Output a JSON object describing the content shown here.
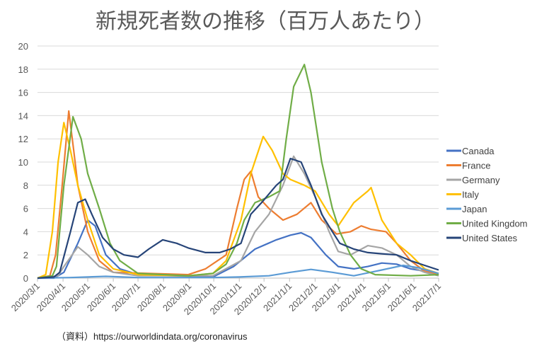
{
  "chart_data": {
    "type": "line",
    "title": "新規死者数の推移（百万人あたり）",
    "xlabel": "",
    "ylabel": "",
    "x_unit": "days since 2020/3/1",
    "xlim": [
      0,
      487
    ],
    "ylim": [
      0,
      20
    ],
    "yticks": [
      "0",
      "2",
      "4",
      "6",
      "8",
      "10",
      "12",
      "14",
      "16",
      "18",
      "20"
    ],
    "xtick_labels": [
      "2020/3/1",
      "2020/4/1",
      "2020/5/1",
      "2020/6/1",
      "2020/7/1",
      "2020/8/1",
      "2020/9/1",
      "2020/10/1",
      "2020/11/1",
      "2020/12/1",
      "2021/1/1",
      "2021/2/1",
      "2021/3/1",
      "2021/4/1",
      "2021/5/1",
      "2021/6/1",
      "2021/7/1"
    ],
    "xtick_days": [
      0,
      31,
      61,
      92,
      122,
      153,
      184,
      214,
      245,
      275,
      306,
      337,
      365,
      396,
      426,
      457,
      487
    ],
    "grid": true,
    "legend_position": "right",
    "source": "（資料）https://ourworldindata.org/coronavirus",
    "series": [
      {
        "name": "Canada",
        "color": "#4472C4",
        "points": [
          [
            0,
            0
          ],
          [
            20,
            0
          ],
          [
            32,
            0.5
          ],
          [
            49,
            3
          ],
          [
            61,
            5
          ],
          [
            70,
            4.5
          ],
          [
            83,
            2
          ],
          [
            100,
            0.8
          ],
          [
            122,
            0.3
          ],
          [
            213,
            0.1
          ],
          [
            238,
            1
          ],
          [
            264,
            2.5
          ],
          [
            290,
            3.3
          ],
          [
            307,
            3.7
          ],
          [
            320,
            3.9
          ],
          [
            332,
            3.5
          ],
          [
            350,
            2
          ],
          [
            365,
            1
          ],
          [
            384,
            0.8
          ],
          [
            401,
            1
          ],
          [
            418,
            1.3
          ],
          [
            436,
            1.2
          ],
          [
            453,
            0.8
          ],
          [
            470,
            0.6
          ],
          [
            487,
            0.3
          ]
        ]
      },
      {
        "name": "France",
        "color": "#ED7D31",
        "points": [
          [
            0,
            0
          ],
          [
            15,
            0.2
          ],
          [
            22,
            2
          ],
          [
            30,
            8
          ],
          [
            38,
            14.4
          ],
          [
            44,
            11
          ],
          [
            49,
            8
          ],
          [
            61,
            4
          ],
          [
            75,
            1.5
          ],
          [
            92,
            0.5
          ],
          [
            183,
            0.3
          ],
          [
            204,
            0.8
          ],
          [
            229,
            2
          ],
          [
            242,
            6
          ],
          [
            251,
            8.5
          ],
          [
            259,
            9.2
          ],
          [
            268,
            7
          ],
          [
            281,
            6
          ],
          [
            298,
            5
          ],
          [
            315,
            5.5
          ],
          [
            332,
            6.5
          ],
          [
            345,
            5
          ],
          [
            363,
            3.8
          ],
          [
            380,
            4
          ],
          [
            393,
            4.5
          ],
          [
            405,
            4.2
          ],
          [
            423,
            4
          ],
          [
            436,
            3
          ],
          [
            453,
            1.5
          ],
          [
            470,
            0.6
          ],
          [
            487,
            0.3
          ]
        ]
      },
      {
        "name": "Germany",
        "color": "#A5A5A5",
        "points": [
          [
            0,
            0
          ],
          [
            25,
            0.2
          ],
          [
            32,
            1
          ],
          [
            49,
            2.7
          ],
          [
            61,
            2
          ],
          [
            75,
            1
          ],
          [
            92,
            0.5
          ],
          [
            122,
            0.2
          ],
          [
            213,
            0.2
          ],
          [
            247,
            1.5
          ],
          [
            264,
            4
          ],
          [
            281,
            5.5
          ],
          [
            298,
            8
          ],
          [
            311,
            10.5
          ],
          [
            324,
            9
          ],
          [
            337,
            7
          ],
          [
            354,
            4
          ],
          [
            365,
            2.3
          ],
          [
            380,
            2
          ],
          [
            401,
            2.8
          ],
          [
            418,
            2.6
          ],
          [
            436,
            2
          ],
          [
            453,
            1
          ],
          [
            470,
            0.5
          ],
          [
            487,
            0.2
          ]
        ]
      },
      {
        "name": "Italy",
        "color": "#FFC000",
        "points": [
          [
            0,
            0
          ],
          [
            10,
            0.3
          ],
          [
            18,
            4
          ],
          [
            25,
            10
          ],
          [
            32,
            13.4
          ],
          [
            40,
            11
          ],
          [
            49,
            8
          ],
          [
            61,
            5
          ],
          [
            75,
            2
          ],
          [
            92,
            0.8
          ],
          [
            122,
            0.3
          ],
          [
            183,
            0.2
          ],
          [
            213,
            0.4
          ],
          [
            229,
            1.5
          ],
          [
            247,
            5
          ],
          [
            259,
            9
          ],
          [
            274,
            12.2
          ],
          [
            285,
            11
          ],
          [
            298,
            9
          ],
          [
            307,
            8.5
          ],
          [
            324,
            8
          ],
          [
            337,
            7.5
          ],
          [
            354,
            5.5
          ],
          [
            365,
            4.5
          ],
          [
            384,
            6.5
          ],
          [
            401,
            7.5
          ],
          [
            405,
            7.8
          ],
          [
            418,
            5
          ],
          [
            436,
            3
          ],
          [
            453,
            2
          ],
          [
            470,
            0.8
          ],
          [
            487,
            0.4
          ]
        ]
      },
      {
        "name": "Japan",
        "color": "#5B9BD5",
        "points": [
          [
            0,
            0
          ],
          [
            40,
            0.05
          ],
          [
            83,
            0.15
          ],
          [
            122,
            0.05
          ],
          [
            213,
            0.05
          ],
          [
            245,
            0.1
          ],
          [
            281,
            0.2
          ],
          [
            307,
            0.5
          ],
          [
            332,
            0.75
          ],
          [
            358,
            0.5
          ],
          [
            384,
            0.2
          ],
          [
            418,
            0.7
          ],
          [
            444,
            1.1
          ],
          [
            462,
            0.9
          ],
          [
            487,
            0.4
          ]
        ]
      },
      {
        "name": "United Kingdom",
        "color": "#70AD47",
        "points": [
          [
            0,
            0
          ],
          [
            18,
            0.2
          ],
          [
            23,
            1
          ],
          [
            32,
            8
          ],
          [
            43,
            13.9
          ],
          [
            53,
            12
          ],
          [
            61,
            9
          ],
          [
            75,
            6
          ],
          [
            88,
            3
          ],
          [
            100,
            1.5
          ],
          [
            122,
            0.4
          ],
          [
            183,
            0.2
          ],
          [
            213,
            0.4
          ],
          [
            229,
            1.2
          ],
          [
            242,
            3
          ],
          [
            251,
            5
          ],
          [
            264,
            6.5
          ],
          [
            281,
            7
          ],
          [
            294,
            7.5
          ],
          [
            302,
            12
          ],
          [
            311,
            16.5
          ],
          [
            324,
            18.4
          ],
          [
            332,
            16
          ],
          [
            345,
            10
          ],
          [
            358,
            6
          ],
          [
            367,
            4
          ],
          [
            380,
            2
          ],
          [
            393,
            0.8
          ],
          [
            410,
            0.3
          ],
          [
            453,
            0.2
          ],
          [
            487,
            0.3
          ]
        ]
      },
      {
        "name": "United States",
        "color": "#264478",
        "points": [
          [
            0,
            0
          ],
          [
            20,
            0.1
          ],
          [
            27,
            0.5
          ],
          [
            40,
            4
          ],
          [
            49,
            6.5
          ],
          [
            58,
            6.8
          ],
          [
            66,
            5.5
          ],
          [
            79,
            3.5
          ],
          [
            92,
            2.5
          ],
          [
            105,
            2
          ],
          [
            122,
            1.8
          ],
          [
            135,
            2.5
          ],
          [
            152,
            3.3
          ],
          [
            169,
            3
          ],
          [
            183,
            2.6
          ],
          [
            204,
            2.2
          ],
          [
            221,
            2.2
          ],
          [
            234,
            2.5
          ],
          [
            247,
            3
          ],
          [
            259,
            5.5
          ],
          [
            272,
            6.5
          ],
          [
            290,
            8
          ],
          [
            298,
            8.5
          ],
          [
            307,
            10.3
          ],
          [
            320,
            10
          ],
          [
            332,
            8
          ],
          [
            345,
            5.5
          ],
          [
            358,
            4
          ],
          [
            367,
            3
          ],
          [
            384,
            2.5
          ],
          [
            401,
            2.2
          ],
          [
            418,
            2.1
          ],
          [
            436,
            2
          ],
          [
            453,
            1.5
          ],
          [
            470,
            1.1
          ],
          [
            487,
            0.7
          ]
        ]
      }
    ]
  }
}
